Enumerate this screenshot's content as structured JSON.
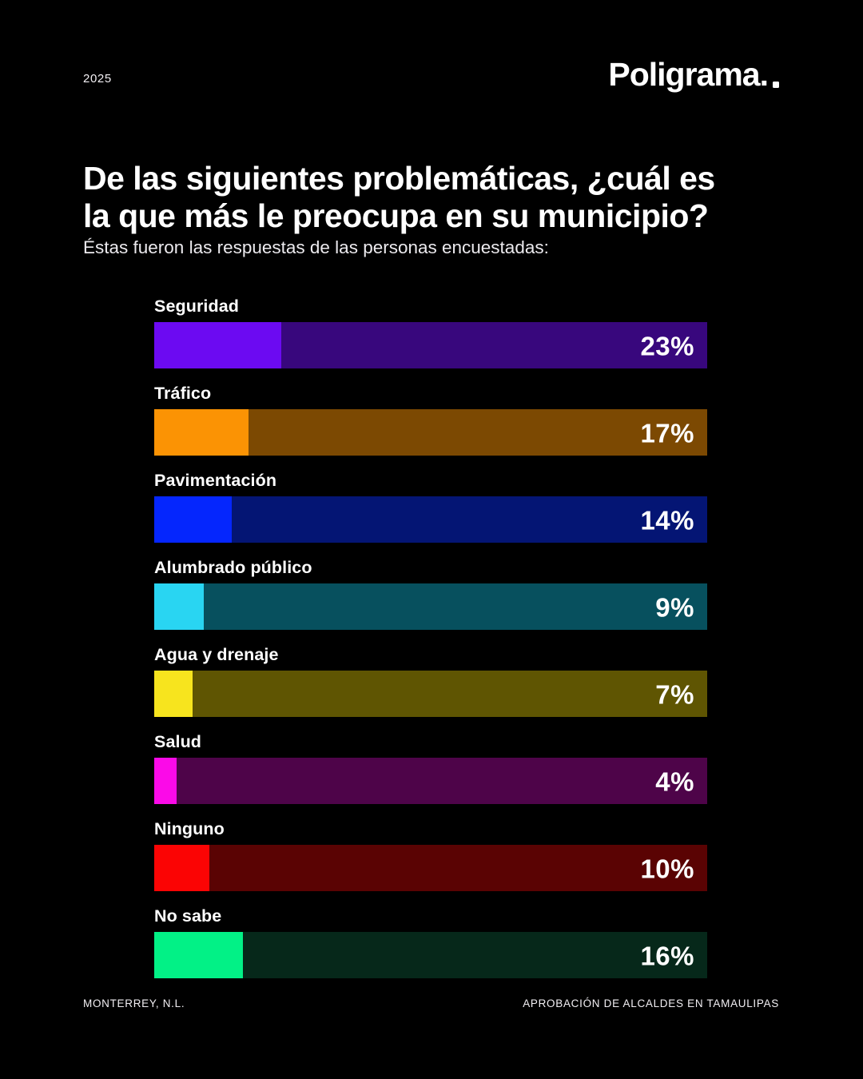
{
  "header": {
    "year": "2025",
    "brand": "Poligrama."
  },
  "title": {
    "lines": [
      "De las siguientes problemáticas, ¿cuál es",
      "la que más le preocupa en su municipio?"
    ]
  },
  "subtitle": "Éstas fueron las respuestas de las personas encuestadas:",
  "footer": {
    "left": "MONTERREY, N.L.",
    "right": "APROBACIÓN DE ALCALDES EN TAMAULIPAS"
  },
  "chart_data": {
    "type": "bar",
    "orientation": "horizontal",
    "title": "De las siguientes problemáticas, ¿cuál es la que más le preocupa en su municipio?",
    "subtitle": "Éstas fueron las respuestas de las personas encuestadas:",
    "categories": [
      "Seguridad",
      "Tráfico",
      "Pavimentación",
      "Alumbrado público",
      "Agua y drenaje",
      "Salud",
      "Ninguno",
      "No sabe"
    ],
    "values": [
      23,
      17,
      14,
      9,
      7,
      4,
      10,
      16
    ],
    "value_suffix": "%",
    "xlim": [
      0,
      100
    ],
    "value_label_position": "inside-right",
    "track_represents_percent": 100,
    "grid": false,
    "legend": false,
    "colors_bright": [
      "#6c0af2",
      "#fb9304",
      "#0526fd",
      "#29d5f2",
      "#f7e41e",
      "#fb0ae8",
      "#fb0404",
      "#02f186"
    ],
    "colors_dark": [
      "#38077d",
      "#7c4902",
      "#041574",
      "#07505e",
      "#5f5502",
      "#4e0449",
      "#5a0303",
      "#06281a"
    ],
    "background": "#000000",
    "text_color": "#ffffff"
  }
}
